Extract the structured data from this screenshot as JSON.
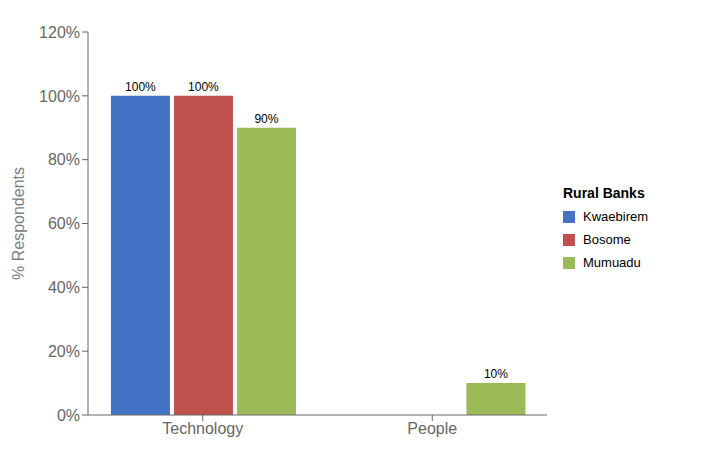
{
  "chart_data": {
    "type": "bar",
    "categories": [
      "Technology",
      "People"
    ],
    "series": [
      {
        "name": "Kwaebirem",
        "color": "#4472C4",
        "values": [
          100,
          0
        ],
        "value_labels": [
          "100%",
          null
        ]
      },
      {
        "name": "Bosome",
        "color": "#C0504D",
        "values": [
          100,
          0
        ],
        "value_labels": [
          "100%",
          null
        ]
      },
      {
        "name": "Mumuadu",
        "color": "#9BBB59",
        "values": [
          90,
          10
        ],
        "value_labels": [
          "90%",
          "10%"
        ]
      }
    ],
    "ylabel": "% Respondents",
    "ylim": [
      0,
      120
    ],
    "yticks": [
      {
        "value": 0,
        "label": "0%"
      },
      {
        "value": 20,
        "label": "20%"
      },
      {
        "value": 40,
        "label": "40%"
      },
      {
        "value": 60,
        "label": "60%"
      },
      {
        "value": 80,
        "label": "80%"
      },
      {
        "value": 100,
        "label": "100%"
      },
      {
        "value": 120,
        "label": "120%"
      }
    ],
    "legend_title": "Rural Banks",
    "legend": "right",
    "data_labels": true,
    "grid": false
  }
}
